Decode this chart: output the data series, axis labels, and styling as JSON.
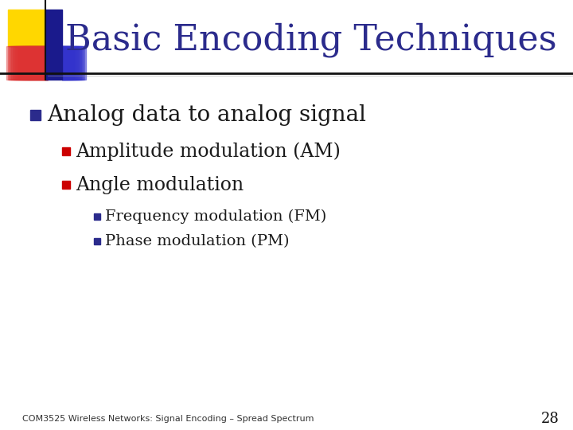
{
  "title": "Basic Encoding Techniques",
  "title_color": "#2B2B8C",
  "title_fontsize": 32,
  "background_color": "#FFFFFF",
  "bullet1": "Analog data to analog signal",
  "bullet1_color": "#1a1a1a",
  "bullet1_marker_color": "#2B2B8C",
  "bullet2": "Amplitude modulation (AM)",
  "bullet2_color": "#1a1a1a",
  "bullet2_marker_color": "#CC0000",
  "bullet3": "Angle modulation",
  "bullet3_color": "#1a1a1a",
  "bullet3_marker_color": "#CC0000",
  "bullet4": "Frequency modulation (FM)",
  "bullet4_color": "#1a1a1a",
  "bullet4_marker_color": "#2B2B8C",
  "bullet5": "Phase modulation (PM)",
  "bullet5_color": "#1a1a1a",
  "bullet5_marker_color": "#2B2B8C",
  "footer": "COM3525 Wireless Networks: Signal Encoding – Spread Spectrum",
  "footer_color": "#333333",
  "footer_fontsize": 8,
  "page_number": "28",
  "page_number_fontsize": 13,
  "header_line_color": "#111111",
  "decor_yellow": "#FFD700",
  "decor_blue": "#1a1a8c",
  "decor_red_pink": "#DD3333",
  "decor_blue2": "#3333CC"
}
